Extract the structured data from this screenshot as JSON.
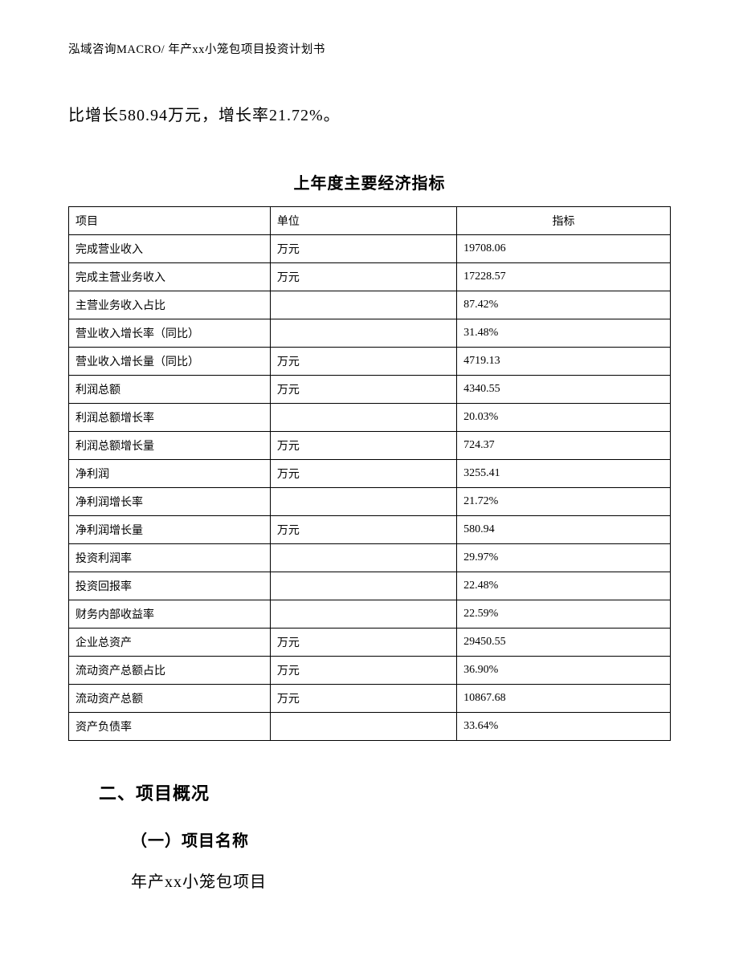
{
  "header": "泓域咨询MACRO/ 年产xx小笼包项目投资计划书",
  "body_line": "比增长580.94万元，增长率21.72%。",
  "table": {
    "title": "上年度主要经济指标",
    "columns": [
      "项目",
      "单位",
      "指标"
    ],
    "rows": [
      {
        "name": "完成营业收入",
        "unit": "万元",
        "value": "19708.06"
      },
      {
        "name": "完成主营业务收入",
        "unit": "万元",
        "value": "17228.57"
      },
      {
        "name": "主营业务收入占比",
        "unit": "",
        "value": "87.42%"
      },
      {
        "name": "营业收入增长率（同比）",
        "unit": "",
        "value": "31.48%"
      },
      {
        "name": "营业收入增长量（同比）",
        "unit": "万元",
        "value": "4719.13"
      },
      {
        "name": "利润总额",
        "unit": "万元",
        "value": "4340.55"
      },
      {
        "name": "利润总额增长率",
        "unit": "",
        "value": "20.03%"
      },
      {
        "name": "利润总额增长量",
        "unit": "万元",
        "value": "724.37"
      },
      {
        "name": "净利润",
        "unit": "万元",
        "value": "3255.41"
      },
      {
        "name": "净利润增长率",
        "unit": "",
        "value": "21.72%"
      },
      {
        "name": "净利润增长量",
        "unit": "万元",
        "value": "580.94"
      },
      {
        "name": "投资利润率",
        "unit": "",
        "value": "29.97%"
      },
      {
        "name": "投资回报率",
        "unit": "",
        "value": "22.48%"
      },
      {
        "name": "财务内部收益率",
        "unit": "",
        "value": "22.59%"
      },
      {
        "name": "企业总资产",
        "unit": "万元",
        "value": "29450.55"
      },
      {
        "name": "流动资产总额占比",
        "unit": "万元",
        "value": "36.90%"
      },
      {
        "name": "流动资产总额",
        "unit": "万元",
        "value": "10867.68"
      },
      {
        "name": "资产负债率",
        "unit": "",
        "value": "33.64%"
      }
    ]
  },
  "section_heading": "二、项目概况",
  "sub_heading": "（一）项目名称",
  "project_name": "年产xx小笼包项目",
  "colors": {
    "text": "#000000",
    "border": "#000000",
    "background": "#ffffff"
  },
  "fonts": {
    "body_pt": 15,
    "table_pt": 10.5,
    "family": "SimSun"
  }
}
